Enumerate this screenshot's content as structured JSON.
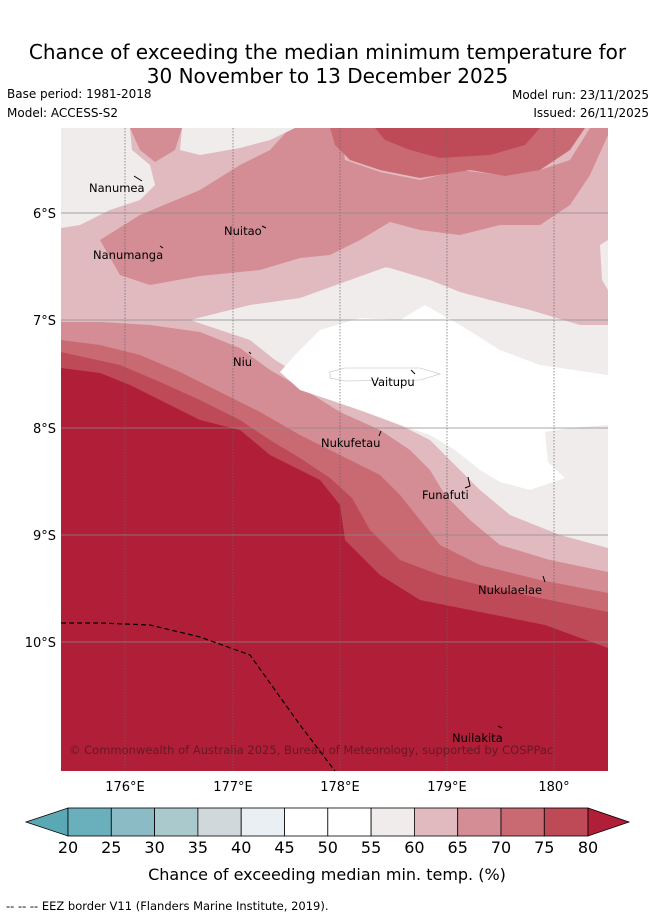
{
  "title": {
    "line1": "Chance of exceeding the median minimum temperature for",
    "line2": "30 November to 13 December 2025"
  },
  "meta": {
    "base_period": "Base period: 1981-2018",
    "model": "Model: ACCESS-S2",
    "model_run": "Model run: 23/11/2025",
    "issued": "Issued: 26/11/2025"
  },
  "axes": {
    "x_ticks": [
      "176°E",
      "177°E",
      "178°E",
      "179°E",
      "180°"
    ],
    "y_ticks": [
      "6°S",
      "7°S",
      "8°S",
      "9°S",
      "10°S"
    ],
    "lon_range": [
      175.4,
      180.5
    ],
    "lat_range": [
      -5.2,
      -11.2
    ]
  },
  "places": [
    {
      "name": "Nanumea"
    },
    {
      "name": "Nanumanga"
    },
    {
      "name": "Nuitao"
    },
    {
      "name": "Niu"
    },
    {
      "name": "Vaitupu"
    },
    {
      "name": "Nukufetau"
    },
    {
      "name": "Funafuti"
    },
    {
      "name": "Nukulaelae"
    },
    {
      "name": "Nuilakita"
    }
  ],
  "copyright": "© Commonwealth of Australia 2025, Bureau of Meteorology, supported by COSPPac",
  "colorbar": {
    "ticks": [
      "20",
      "25",
      "30",
      "35",
      "40",
      "45",
      "50",
      "55",
      "60",
      "65",
      "70",
      "75",
      "80"
    ],
    "label": "Chance of exceeding median min. temp. (%)",
    "colors": {
      "under": "#5ba8b5",
      "c20": "#6aafbc",
      "c25": "#8bbcc6",
      "c30": "#a9c9cd",
      "c35": "#d1d8db",
      "c40": "#e9eff2",
      "c45": "#ffffff",
      "c50": "#ffffff",
      "c55": "#efeceb",
      "c60": "#e1babf",
      "c65": "#d48c95",
      "c70": "#c96a73",
      "c75": "#bf4a57",
      "over": "#b01e38"
    }
  },
  "footer": "--  --  -- EEZ border V11 (Flanders Marine Institute, 2019)."
}
